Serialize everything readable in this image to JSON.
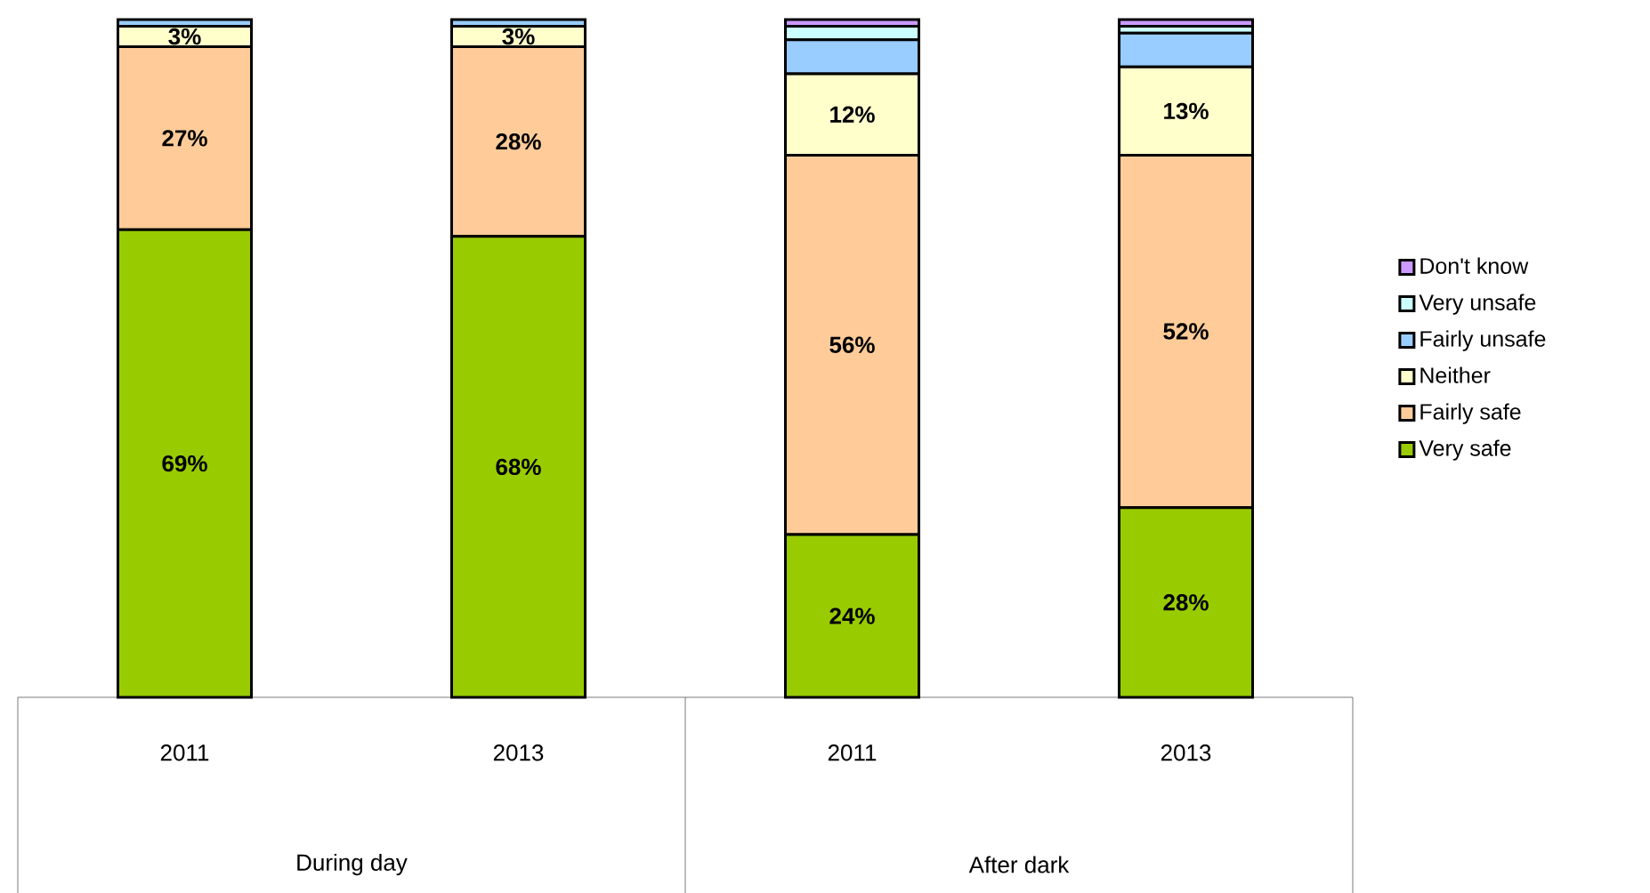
{
  "chart_data": {
    "type": "bar",
    "stacked": true,
    "categories": [
      "2011",
      "2013",
      "2011",
      "2013"
    ],
    "series": [
      {
        "name": "Very safe",
        "color": "#99cc00",
        "values": [
          69,
          68,
          24,
          28
        ],
        "value_labels": [
          "69%",
          "68%",
          "24%",
          "28%"
        ]
      },
      {
        "name": "Fairly safe",
        "color": "#ffcc99",
        "values": [
          27,
          28,
          56,
          52
        ],
        "value_labels": [
          "27%",
          "28%",
          "56%",
          "52%"
        ]
      },
      {
        "name": "Neither",
        "color": "#ffffcc",
        "values": [
          3,
          3,
          12,
          13
        ],
        "value_labels": [
          "3%",
          "3%",
          "12%",
          "13%"
        ]
      },
      {
        "name": "Fairly unsafe",
        "color": "#99ccff",
        "values": [
          1,
          1,
          5,
          5
        ],
        "value_labels": [
          null,
          null,
          null,
          null
        ]
      },
      {
        "name": "Very unsafe",
        "color": "#ccffff",
        "values": [
          0,
          0,
          2,
          1
        ],
        "value_labels": [
          null,
          null,
          null,
          null
        ]
      },
      {
        "name": "Don't know",
        "color": "#cc99ff",
        "values": [
          0,
          0,
          1,
          1
        ],
        "value_labels": [
          null,
          null,
          null,
          null
        ]
      }
    ],
    "annotations": [
      "During day",
      "After dark"
    ],
    "ylim": [
      0,
      100
    ],
    "tick_labels": "x",
    "legend": "right"
  }
}
